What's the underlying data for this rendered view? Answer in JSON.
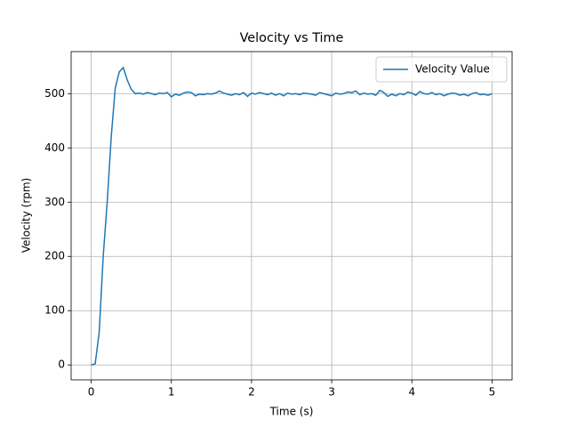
{
  "chart_data": {
    "type": "line",
    "title": "Velocity vs Time",
    "x_label": "Time (s)",
    "y_label": "Velocity (rpm)",
    "x": [
      0,
      0.05,
      0.1,
      0.15,
      0.2,
      0.25,
      0.3,
      0.35,
      0.4,
      0.45,
      0.5,
      0.55,
      0.6,
      0.65,
      0.7,
      0.75,
      0.8,
      0.85,
      0.9,
      0.95,
      1,
      1.05,
      1.1,
      1.15,
      1.2,
      1.25,
      1.3,
      1.35,
      1.4,
      1.45,
      1.5,
      1.55,
      1.6,
      1.65,
      1.7,
      1.75,
      1.8,
      1.85,
      1.9,
      1.95,
      2,
      2.05,
      2.1,
      2.15,
      2.2,
      2.25,
      2.3,
      2.35,
      2.4,
      2.45,
      2.5,
      2.55,
      2.6,
      2.65,
      2.7,
      2.75,
      2.8,
      2.85,
      2.9,
      2.95,
      3,
      3.05,
      3.1,
      3.15,
      3.2,
      3.25,
      3.3,
      3.35,
      3.4,
      3.45,
      3.5,
      3.55,
      3.6,
      3.65,
      3.7,
      3.75,
      3.8,
      3.85,
      3.9,
      3.95,
      4,
      4.05,
      4.1,
      4.15,
      4.2,
      4.25,
      4.3,
      4.35,
      4.4,
      4.45,
      4.5,
      4.55,
      4.6,
      4.65,
      4.7,
      4.75,
      4.8,
      4.85,
      4.9,
      4.95,
      5
    ],
    "series": [
      {
        "name": "Velocity Value",
        "color": "#1f77b4",
        "values": [
          0,
          2,
          60,
          200,
          300,
          420,
          510,
          540,
          548,
          525,
          508,
          500,
          501,
          499,
          502,
          500,
          498,
          501,
          500,
          502,
          494,
          499,
          497,
          501,
          503,
          502,
          496,
          499,
          498,
          500,
          499,
          501,
          505,
          501,
          499,
          497,
          500,
          498,
          502,
          495,
          501,
          499,
          502,
          500,
          498,
          501,
          497,
          500,
          496,
          501,
          499,
          500,
          498,
          501,
          500,
          499,
          497,
          502,
          500,
          498,
          496,
          501,
          499,
          500,
          503,
          502,
          505,
          498,
          501,
          499,
          500,
          497,
          506,
          502,
          495,
          499,
          496,
          500,
          498,
          503,
          501,
          497,
          504,
          500,
          499,
          502,
          498,
          500,
          496,
          499,
          501,
          500,
          497,
          499,
          496,
          500,
          502,
          498,
          499,
          497,
          500
        ]
      }
    ],
    "xlim": [
      -0.25,
      5.25
    ],
    "ylim": [
      -27.5,
      577.5
    ],
    "xticks": [
      0,
      1,
      2,
      3,
      4,
      5
    ],
    "yticks": [
      0,
      100,
      200,
      300,
      400,
      500
    ],
    "grid": true,
    "legend": "upper right"
  }
}
